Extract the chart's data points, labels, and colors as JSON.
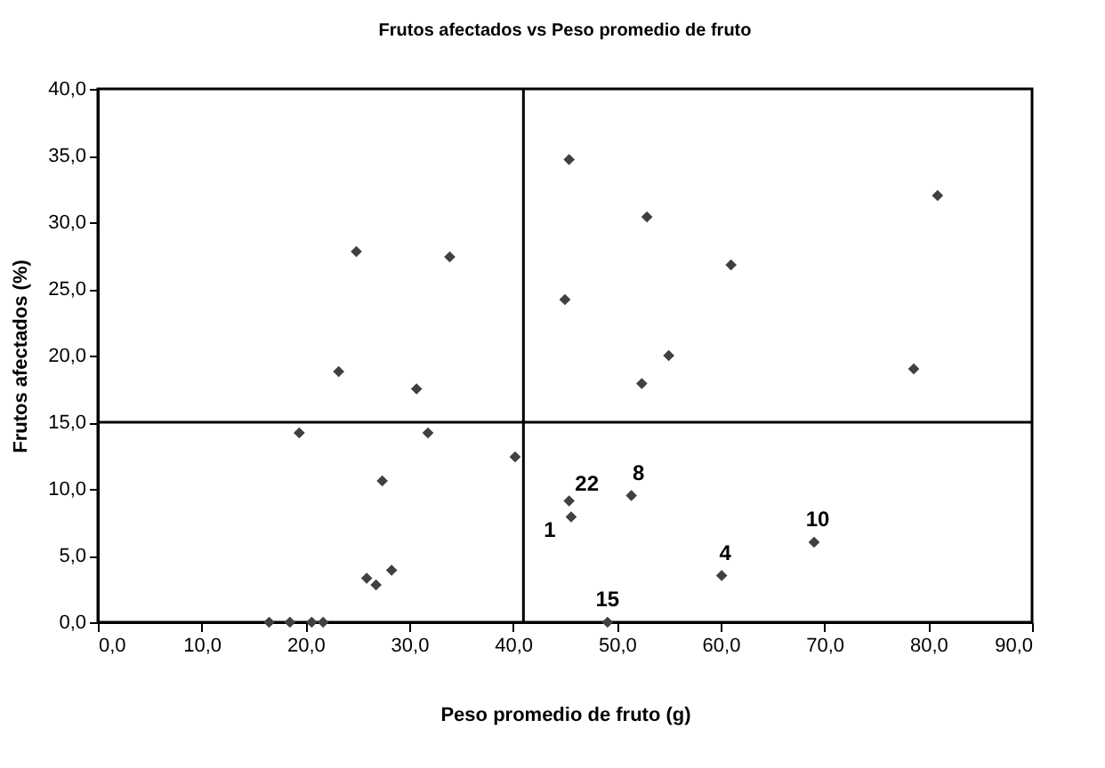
{
  "chart_data": {
    "type": "scatter",
    "title": "Frutos afectados vs Peso promedio de fruto",
    "xlabel": "Peso promedio de fruto (g)",
    "ylabel": "Frutos afectados (%)",
    "x": [
      16.5,
      18.5,
      20.6,
      21.7,
      24.9,
      33.9,
      23.2,
      30.7,
      19.4,
      31.8,
      40.2,
      27.4,
      25.9,
      26.8,
      28.3,
      45.4,
      52.9,
      61.0,
      80.9,
      45.0,
      55.0,
      52.4,
      78.6,
      45.4,
      45.6,
      51.4,
      69.0,
      60.1,
      49.1
    ],
    "series": [
      {
        "color": "#404040",
        "values": [
          0,
          0,
          0,
          0,
          27.8,
          27.4,
          18.8,
          17.5,
          14.2,
          14.2,
          12.4,
          10.6,
          3.3,
          2.8,
          3.9,
          34.7,
          30.4,
          26.8,
          32.0,
          24.2,
          20.0,
          17.9,
          19.0,
          9.1,
          7.9,
          9.5,
          6.0,
          3.5,
          0
        ]
      }
    ],
    "marker": "diamond",
    "xlim": [
      0,
      90
    ],
    "ylim": [
      0,
      40
    ],
    "xticks": [
      {
        "value": 0,
        "label": "0,0"
      },
      {
        "value": 10,
        "label": "10,0"
      },
      {
        "value": 20,
        "label": "20,0"
      },
      {
        "value": 30,
        "label": "30,0"
      },
      {
        "value": 40,
        "label": "40,0"
      },
      {
        "value": 50,
        "label": "50,0"
      },
      {
        "value": 60,
        "label": "60,0"
      },
      {
        "value": 70,
        "label": "70,0"
      },
      {
        "value": 80,
        "label": "80,0"
      },
      {
        "value": 90,
        "label": "90,0"
      }
    ],
    "yticks": [
      {
        "value": 0,
        "label": "0,0"
      },
      {
        "value": 5,
        "label": "5,0"
      },
      {
        "value": 10,
        "label": "10,0"
      },
      {
        "value": 15,
        "label": "15,0"
      },
      {
        "value": 20,
        "label": "20,0"
      },
      {
        "value": 25,
        "label": "25,0"
      },
      {
        "value": 30,
        "label": "30,0"
      },
      {
        "value": 35,
        "label": "35,0"
      },
      {
        "value": 40,
        "label": "40,0"
      }
    ],
    "ref_lines": [
      {
        "axis": "x",
        "value": 41.0,
        "color": "#000000"
      },
      {
        "axis": "y",
        "value": 15,
        "color": "#000000"
      }
    ],
    "annotations": [
      {
        "text": "22",
        "x": 45.4,
        "y": 9.1
      },
      {
        "text": "1",
        "x": 45.6,
        "y": 7.9
      },
      {
        "text": "8",
        "x": 51.4,
        "y": 9.5
      },
      {
        "text": "10",
        "x": 69.0,
        "y": 6.0
      },
      {
        "text": "4",
        "x": 60.1,
        "y": 3.5
      },
      {
        "text": "15",
        "x": 49.1,
        "y": 0
      }
    ],
    "grid": false
  }
}
